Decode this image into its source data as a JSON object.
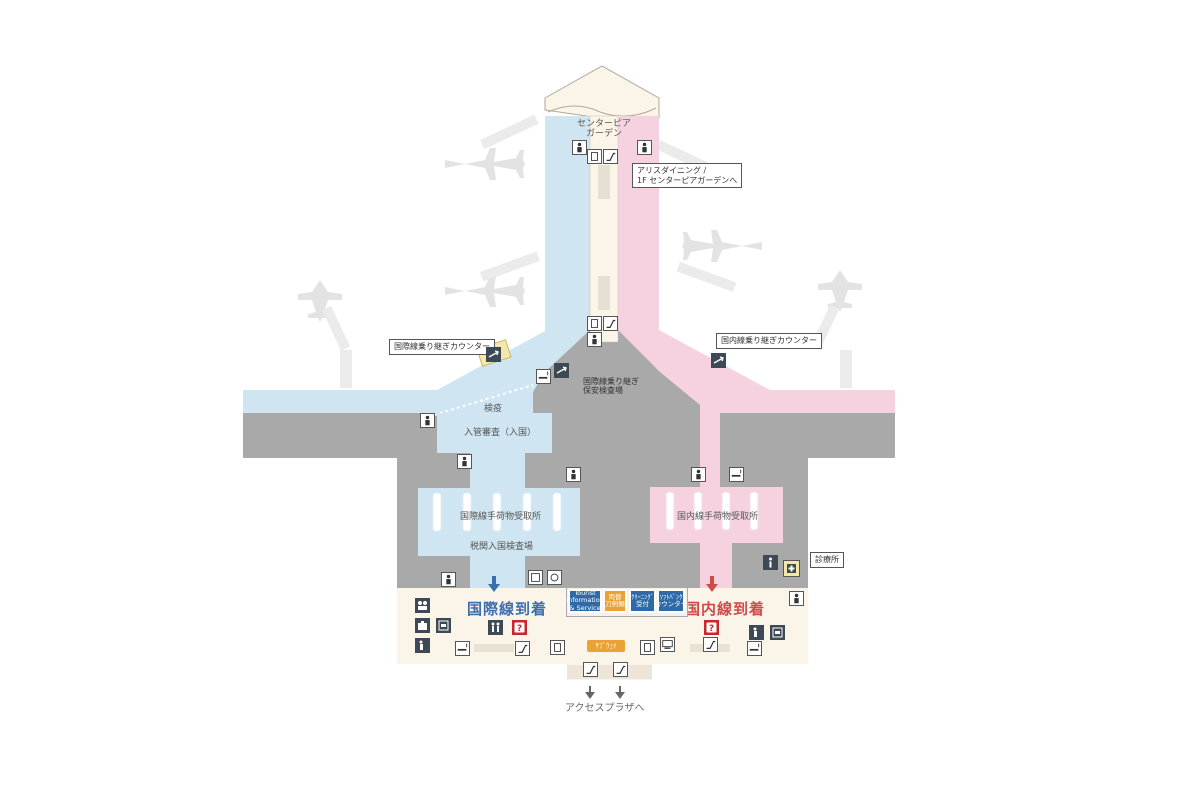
{
  "map": {
    "labels": {
      "center_pier_garden": "センターピア\nガーデン",
      "quarantine": "検疫",
      "immigration": "入管審査（入国）",
      "intl_baggage": "国際線手荷物受取所",
      "dom_baggage": "国内線手荷物受取所",
      "customs": "税関入国検査場",
      "intl_arrivals": "国際線到着",
      "dom_arrivals": "国内線到着",
      "access_plaza": "アクセスプラザへ",
      "cafe": "ｻﾌﾞｳｪｲ"
    },
    "callouts": {
      "aris_dining": "アリスダイニング /\n1F センターピアガーデンへ",
      "intl_transfer_counter": "国際線乗り継ぎカウンター",
      "dom_transfer_counter": "国内線乗り継ぎカウンター",
      "intl_transfer_security": "国際線乗り継ぎ\n保安検査場",
      "clinic": "診療所"
    },
    "services": [
      {
        "label": "Tourist\nInformation\n& Service",
        "color": "#2e6aa8"
      },
      {
        "label": "両替\n刀剣類",
        "color": "#e9a233"
      },
      {
        "label": "ｸﾘｰﾆﾝｸﾞ\n受付",
        "color": "#2e6aa8"
      },
      {
        "label": "ｿﾌﾄﾊﾞﾝｸ\nカウンター",
        "color": "#2e6aa8"
      }
    ],
    "colors": {
      "intl_zone": "#cfe6f2",
      "dom_zone": "#f6d2e1",
      "common_zone": "#fbf4e8",
      "restricted": "#a9a9a9",
      "intl_accent": "#3a6fae",
      "dom_accent": "#cf4a4a"
    },
    "icons": [
      "restroom-icon",
      "escalator-icon",
      "airplane-transfer-icon",
      "smoking-area-icon",
      "information-icon",
      "question-icon",
      "baggage-icon",
      "atm-icon",
      "elevator-icon",
      "clinic-icon",
      "down-arrow-icon",
      "airplane-silhouette-icon"
    ]
  }
}
